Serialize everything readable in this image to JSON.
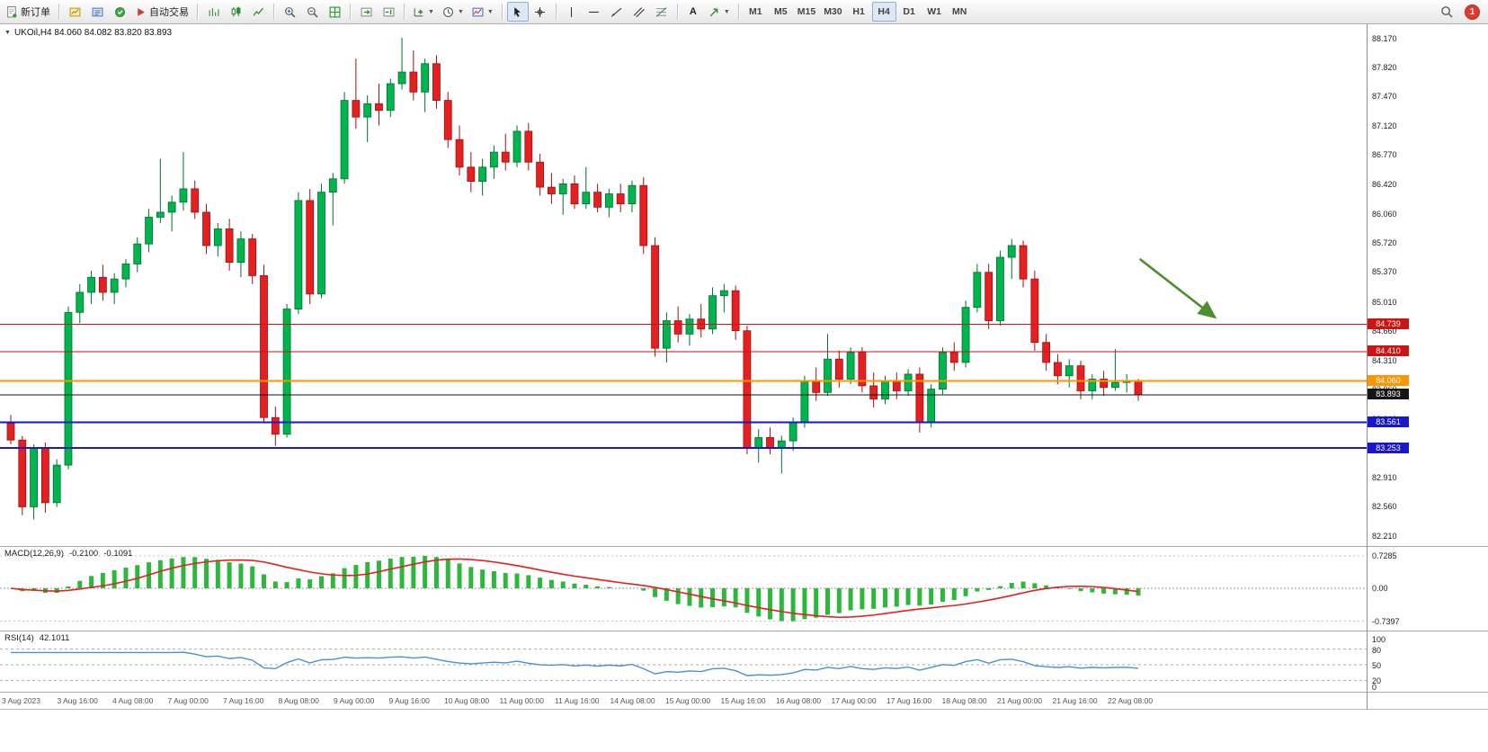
{
  "toolbar": {
    "new_order_label": "新订单",
    "auto_trading_label": "自动交易",
    "text_tool_label": "A",
    "timeframes": [
      "M1",
      "M5",
      "M15",
      "M30",
      "H1",
      "H4",
      "D1",
      "W1",
      "MN"
    ],
    "active_timeframe": "H4",
    "badge": "1"
  },
  "main_chart": {
    "info": "UKOil,H4  84.060 84.082 83.820 83.893",
    "price_min": 82.21,
    "price_max": 88.17,
    "price_labels": [
      "88.170",
      "87.820",
      "87.470",
      "87.120",
      "86.770",
      "86.420",
      "86.060",
      "85.720",
      "85.370",
      "85.010",
      "84.660",
      "84.310",
      "83.960",
      "83.610",
      "83.260",
      "82.910",
      "82.560",
      "82.210"
    ],
    "levels": [
      {
        "value": 84.739,
        "tag": "84.739",
        "color": "#cf1212",
        "width": 1
      },
      {
        "value": 84.41,
        "tag": "84.410",
        "color": "#cf1212",
        "width": 1
      },
      {
        "value": 84.06,
        "tag": "84.060",
        "color": "#ff9500",
        "width": 2
      },
      {
        "value": 83.893,
        "tag": "83.893",
        "color": "#151515",
        "width": 1
      },
      {
        "value": 83.561,
        "tag": "83.561",
        "color": "#1717cf",
        "width": 2
      },
      {
        "value": 83.253,
        "tag": "83.253",
        "color": "#1717cf",
        "width": 2
      }
    ],
    "up_color": "#00b44e",
    "up_border": "#00702f",
    "down_color": "#e42020",
    "down_border": "#9c1111",
    "arrow": {
      "from_x": 0.834,
      "from_price": 85.52,
      "to_x": 0.889,
      "to_price": 84.82,
      "color": "#4e8f2f"
    },
    "candles": [
      [
        83.55,
        83.65,
        83.3,
        83.35
      ],
      [
        83.35,
        83.4,
        82.45,
        82.55
      ],
      [
        82.55,
        83.3,
        82.4,
        83.25
      ],
      [
        83.25,
        83.32,
        82.48,
        82.6
      ],
      [
        82.6,
        83.12,
        82.55,
        83.05
      ],
      [
        83.05,
        84.95,
        83.0,
        84.88
      ],
      [
        84.88,
        85.22,
        84.75,
        85.12
      ],
      [
        85.12,
        85.38,
        84.98,
        85.3
      ],
      [
        85.3,
        85.45,
        85.02,
        85.12
      ],
      [
        85.12,
        85.35,
        84.98,
        85.28
      ],
      [
        85.28,
        85.52,
        85.18,
        85.46
      ],
      [
        85.46,
        85.78,
        85.36,
        85.7
      ],
      [
        85.7,
        86.12,
        85.6,
        86.02
      ],
      [
        86.02,
        86.72,
        85.95,
        86.08
      ],
      [
        86.08,
        86.28,
        85.85,
        86.2
      ],
      [
        86.2,
        86.8,
        86.1,
        86.36
      ],
      [
        86.36,
        86.46,
        86.0,
        86.08
      ],
      [
        86.08,
        86.18,
        85.58,
        85.68
      ],
      [
        85.68,
        85.95,
        85.55,
        85.88
      ],
      [
        85.88,
        86.0,
        85.38,
        85.48
      ],
      [
        85.48,
        85.85,
        85.3,
        85.76
      ],
      [
        85.76,
        85.82,
        85.22,
        85.32
      ],
      [
        85.32,
        85.45,
        83.55,
        83.62
      ],
      [
        83.62,
        83.75,
        83.28,
        83.42
      ],
      [
        83.42,
        84.98,
        83.38,
        84.92
      ],
      [
        84.92,
        86.32,
        84.86,
        86.22
      ],
      [
        86.22,
        86.36,
        84.98,
        85.1
      ],
      [
        85.1,
        86.42,
        85.05,
        86.32
      ],
      [
        86.32,
        86.55,
        85.92,
        86.48
      ],
      [
        86.48,
        87.52,
        86.42,
        87.42
      ],
      [
        87.42,
        87.92,
        87.08,
        87.22
      ],
      [
        87.22,
        87.48,
        86.92,
        87.38
      ],
      [
        87.38,
        87.62,
        87.12,
        87.3
      ],
      [
        87.3,
        87.68,
        87.22,
        87.62
      ],
      [
        87.62,
        88.17,
        87.55,
        87.76
      ],
      [
        87.76,
        88.02,
        87.42,
        87.52
      ],
      [
        87.52,
        87.92,
        87.28,
        87.86
      ],
      [
        87.86,
        87.96,
        87.32,
        87.42
      ],
      [
        87.42,
        87.52,
        86.85,
        86.95
      ],
      [
        86.95,
        87.12,
        86.52,
        86.62
      ],
      [
        86.62,
        86.8,
        86.32,
        86.45
      ],
      [
        86.45,
        86.72,
        86.28,
        86.62
      ],
      [
        86.62,
        86.88,
        86.48,
        86.8
      ],
      [
        86.8,
        87.02,
        86.58,
        86.68
      ],
      [
        86.68,
        87.12,
        86.62,
        87.05
      ],
      [
        87.05,
        87.15,
        86.58,
        86.68
      ],
      [
        86.68,
        86.78,
        86.28,
        86.38
      ],
      [
        86.38,
        86.55,
        86.18,
        86.3
      ],
      [
        86.3,
        86.48,
        86.05,
        86.42
      ],
      [
        86.42,
        86.52,
        86.12,
        86.18
      ],
      [
        86.18,
        86.62,
        86.12,
        86.32
      ],
      [
        86.32,
        86.42,
        86.08,
        86.14
      ],
      [
        86.14,
        86.36,
        86.02,
        86.3
      ],
      [
        86.3,
        86.42,
        86.08,
        86.18
      ],
      [
        86.18,
        86.46,
        86.08,
        86.4
      ],
      [
        86.4,
        86.5,
        85.58,
        85.68
      ],
      [
        85.68,
        85.78,
        84.35,
        84.45
      ],
      [
        84.45,
        84.88,
        84.28,
        84.78
      ],
      [
        84.78,
        84.95,
        84.52,
        84.62
      ],
      [
        84.62,
        84.86,
        84.48,
        84.8
      ],
      [
        84.8,
        84.98,
        84.58,
        84.68
      ],
      [
        84.68,
        85.18,
        84.62,
        85.08
      ],
      [
        85.08,
        85.22,
        84.88,
        85.14
      ],
      [
        85.14,
        85.2,
        84.55,
        84.66
      ],
      [
        84.66,
        84.72,
        83.18,
        83.26
      ],
      [
        83.26,
        83.48,
        83.08,
        83.38
      ],
      [
        83.38,
        83.5,
        83.18,
        83.26
      ],
      [
        83.26,
        83.4,
        82.95,
        83.34
      ],
      [
        83.34,
        83.62,
        83.22,
        83.56
      ],
      [
        83.56,
        84.12,
        83.5,
        84.05
      ],
      [
        84.05,
        84.22,
        83.82,
        83.92
      ],
      [
        83.92,
        84.62,
        83.88,
        84.32
      ],
      [
        84.32,
        84.42,
        83.98,
        84.08
      ],
      [
        84.08,
        84.46,
        84.02,
        84.4
      ],
      [
        84.4,
        84.46,
        83.92,
        84.0
      ],
      [
        84.0,
        84.16,
        83.74,
        83.84
      ],
      [
        83.84,
        84.12,
        83.78,
        84.06
      ],
      [
        84.06,
        84.16,
        83.84,
        83.94
      ],
      [
        83.94,
        84.2,
        83.88,
        84.14
      ],
      [
        84.14,
        84.22,
        83.44,
        83.56
      ],
      [
        83.56,
        84.02,
        83.5,
        83.96
      ],
      [
        83.96,
        84.46,
        83.9,
        84.4
      ],
      [
        84.4,
        84.52,
        84.18,
        84.28
      ],
      [
        84.28,
        85.02,
        84.22,
        84.94
      ],
      [
        84.94,
        85.46,
        84.88,
        85.36
      ],
      [
        85.36,
        85.46,
        84.68,
        84.78
      ],
      [
        84.78,
        85.62,
        84.72,
        85.54
      ],
      [
        85.54,
        85.76,
        85.28,
        85.68
      ],
      [
        85.68,
        85.74,
        85.18,
        85.28
      ],
      [
        85.28,
        85.38,
        84.42,
        84.52
      ],
      [
        84.52,
        84.62,
        84.18,
        84.28
      ],
      [
        84.28,
        84.38,
        84.02,
        84.12
      ],
      [
        84.12,
        84.32,
        83.98,
        84.24
      ],
      [
        84.24,
        84.3,
        83.84,
        83.94
      ],
      [
        83.94,
        84.14,
        83.84,
        84.08
      ],
      [
        84.08,
        84.18,
        83.88,
        83.98
      ],
      [
        83.98,
        84.44,
        83.94,
        84.04
      ],
      [
        84.04,
        84.14,
        83.92,
        84.06
      ],
      [
        84.06,
        84.082,
        83.82,
        83.893
      ]
    ]
  },
  "macd_panel": {
    "title": "MACD(12,26,9)",
    "value_main": "-0.2100",
    "value_signal": "-0.1091",
    "axis_labels": [
      "0.7285",
      "0.00",
      "-0.7397"
    ],
    "max": 0.7285,
    "min": -0.7397,
    "hist_color": "#2db83d",
    "signal_color": "#e42020"
  },
  "rsi_panel": {
    "title": "RSI(14)",
    "value": "42.1011",
    "axis_labels": [
      "100",
      "80",
      "50",
      "20",
      "0"
    ],
    "levels": [
      80,
      50,
      20
    ],
    "line_color": "#4a90d9"
  },
  "time_axis": [
    "3 Aug 2023",
    "3 Aug 16:00",
    "4 Aug 08:00",
    "7 Aug 00:00",
    "7 Aug 16:00",
    "8 Aug 08:00",
    "9 Aug 00:00",
    "9 Aug 16:00",
    "10 Aug 08:00",
    "11 Aug 00:00",
    "11 Aug 16:00",
    "14 Aug 08:00",
    "15 Aug 00:00",
    "15 Aug 16:00",
    "16 Aug 08:00",
    "17 Aug 00:00",
    "17 Aug 16:00",
    "18 Aug 08:00",
    "21 Aug 00:00",
    "21 Aug 16:00",
    "22 Aug 08:00"
  ]
}
